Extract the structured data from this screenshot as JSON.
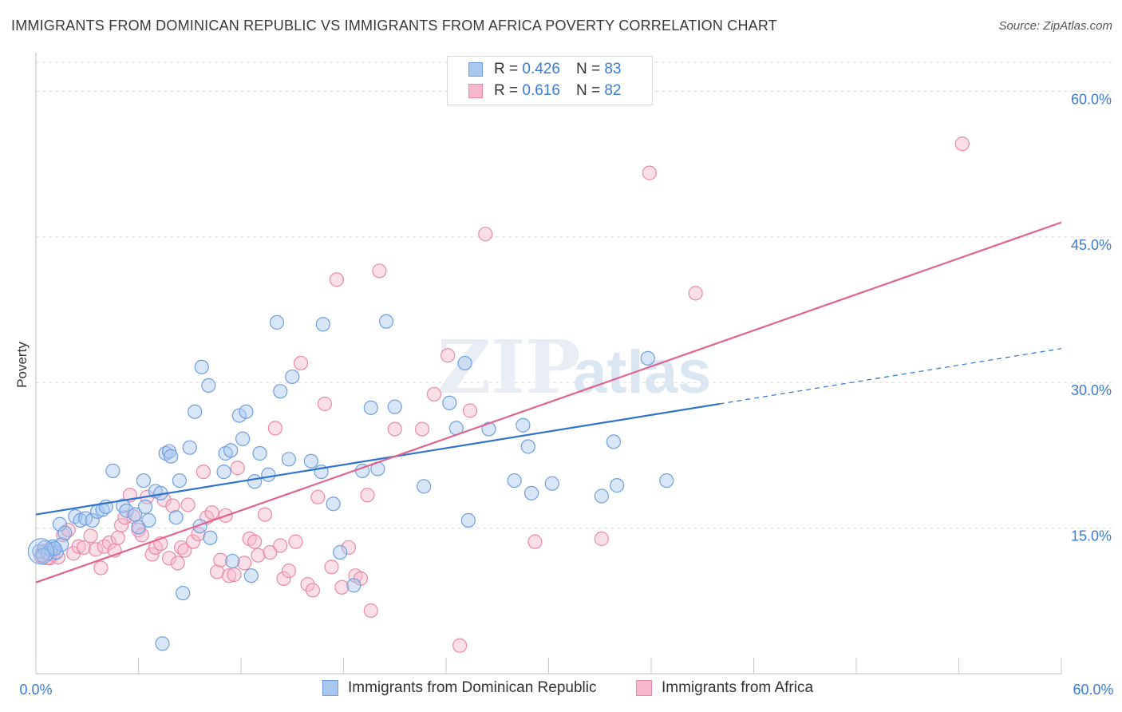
{
  "header": {
    "title": "IMMIGRANTS FROM DOMINICAN REPUBLIC VS IMMIGRANTS FROM AFRICA POVERTY CORRELATION CHART",
    "source": "Source: ZipAtlas.com"
  },
  "legend": {
    "rows": [
      {
        "r_label": "R = ",
        "r_value": "0.426",
        "n_label": "N = ",
        "n_value": "83"
      },
      {
        "r_label": "R = ",
        "r_value": "0.616",
        "n_label": "N = ",
        "n_value": "82"
      }
    ]
  },
  "bottom_legend": {
    "series1": "Immigrants from Dominican Republic",
    "series2": "Immigrants from Africa"
  },
  "watermark": "ZIPatlas",
  "colors": {
    "blue_fill": "#a9c8f0",
    "blue_stroke": "#6f9fe0",
    "blue_line": "#2f72d0",
    "pink_fill": "#f6b8ca",
    "pink_stroke": "#ea8aa8",
    "pink_line": "#e0648e",
    "grid": "#dcdcdc",
    "axis_text": "#3a7bd5"
  },
  "chart_data": {
    "type": "scatter",
    "title": "IMMIGRANTS FROM DOMINICAN REPUBLIC VS IMMIGRANTS FROM AFRICA POVERTY CORRELATION CHART",
    "xlabel": "",
    "ylabel": "Poverty",
    "xlim": [
      0,
      60
    ],
    "ylim": [
      0,
      63
    ],
    "x_tick_labels": [
      "0.0%",
      "60.0%"
    ],
    "y_tick_labels": [
      "15.0%",
      "30.0%",
      "45.0%",
      "60.0%"
    ],
    "y_ticks": [
      15,
      30,
      45,
      60
    ],
    "grid": "horizontal dashed",
    "legend_position": "top-center",
    "series": [
      {
        "name": "Immigrants from Dominican Republic",
        "color": "#6f9fe0",
        "R": 0.426,
        "N": 83,
        "trendline": {
          "x": [
            0,
            40
          ],
          "y": [
            16.4,
            27.8
          ],
          "dashed_extension_to": [
            60,
            33.5
          ]
        },
        "points": [
          [
            0.2,
            12.6
          ],
          [
            0.5,
            13.0
          ],
          [
            0.7,
            12.4
          ],
          [
            0.9,
            12.8
          ],
          [
            1.0,
            13.1
          ],
          [
            1.2,
            12.5
          ],
          [
            1.5,
            13.3
          ],
          [
            1.4,
            15.4
          ],
          [
            1.7,
            14.5
          ],
          [
            2.3,
            16.2
          ],
          [
            2.6,
            15.8
          ],
          [
            2.9,
            16.0
          ],
          [
            3.3,
            15.8
          ],
          [
            3.6,
            16.7
          ],
          [
            3.9,
            16.9
          ],
          [
            4.1,
            17.2
          ],
          [
            4.5,
            20.9
          ],
          [
            5.1,
            17.3
          ],
          [
            5.3,
            16.8
          ],
          [
            5.8,
            16.4
          ],
          [
            6.0,
            15.1
          ],
          [
            6.3,
            19.9
          ],
          [
            6.4,
            17.2
          ],
          [
            6.6,
            15.8
          ],
          [
            7.0,
            18.8
          ],
          [
            7.3,
            18.6
          ],
          [
            7.6,
            22.7
          ],
          [
            7.8,
            22.9
          ],
          [
            7.9,
            22.4
          ],
          [
            8.2,
            16.1
          ],
          [
            8.4,
            19.9
          ],
          [
            8.6,
            8.3
          ],
          [
            9.0,
            23.3
          ],
          [
            9.3,
            27.0
          ],
          [
            9.6,
            15.2
          ],
          [
            9.7,
            31.6
          ],
          [
            10.1,
            29.7
          ],
          [
            10.2,
            14.0
          ],
          [
            11.0,
            20.8
          ],
          [
            11.1,
            22.7
          ],
          [
            11.4,
            23.0
          ],
          [
            11.5,
            11.6
          ],
          [
            11.9,
            26.6
          ],
          [
            12.1,
            24.2
          ],
          [
            12.3,
            27.0
          ],
          [
            12.6,
            10.1
          ],
          [
            12.8,
            19.8
          ],
          [
            13.1,
            22.7
          ],
          [
            13.6,
            20.5
          ],
          [
            14.1,
            36.2
          ],
          [
            14.3,
            29.1
          ],
          [
            14.8,
            22.1
          ],
          [
            15.0,
            30.6
          ],
          [
            16.1,
            21.9
          ],
          [
            16.7,
            20.8
          ],
          [
            16.8,
            36.0
          ],
          [
            17.4,
            17.5
          ],
          [
            17.8,
            12.5
          ],
          [
            18.6,
            9.1
          ],
          [
            19.1,
            20.9
          ],
          [
            19.6,
            27.4
          ],
          [
            20.0,
            21.1
          ],
          [
            20.5,
            36.3
          ],
          [
            21.0,
            27.5
          ],
          [
            22.7,
            19.3
          ],
          [
            24.2,
            27.9
          ],
          [
            24.6,
            25.3
          ],
          [
            25.1,
            32.0
          ],
          [
            25.3,
            15.8
          ],
          [
            26.5,
            25.2
          ],
          [
            28.0,
            19.9
          ],
          [
            28.5,
            25.6
          ],
          [
            28.8,
            23.4
          ],
          [
            29.0,
            18.6
          ],
          [
            30.2,
            19.6
          ],
          [
            33.1,
            18.3
          ],
          [
            33.8,
            23.9
          ],
          [
            34.0,
            19.4
          ],
          [
            35.8,
            32.5
          ],
          [
            36.9,
            19.9
          ],
          [
            7.4,
            3.1
          ],
          [
            0.4,
            12.2
          ],
          [
            1.1,
            12.9
          ]
        ]
      },
      {
        "name": "Immigrants from Africa",
        "color": "#ea8aa8",
        "R": 0.616,
        "N": 82,
        "trendline": {
          "x": [
            0,
            60
          ],
          "y": [
            9.4,
            46.5
          ]
        },
        "points": [
          [
            0.3,
            12.1
          ],
          [
            0.6,
            12.6
          ],
          [
            0.8,
            11.9
          ],
          [
            1.0,
            12.3
          ],
          [
            1.3,
            12.0
          ],
          [
            1.6,
            14.3
          ],
          [
            1.9,
            14.8
          ],
          [
            2.2,
            12.4
          ],
          [
            2.5,
            13.1
          ],
          [
            2.8,
            13.0
          ],
          [
            3.2,
            14.2
          ],
          [
            3.5,
            12.8
          ],
          [
            3.8,
            10.9
          ],
          [
            4.0,
            13.1
          ],
          [
            4.3,
            13.5
          ],
          [
            4.6,
            12.7
          ],
          [
            4.8,
            14.0
          ],
          [
            5.0,
            15.3
          ],
          [
            5.2,
            16.1
          ],
          [
            5.5,
            18.4
          ],
          [
            5.7,
            16.2
          ],
          [
            6.0,
            14.8
          ],
          [
            6.2,
            14.3
          ],
          [
            6.5,
            18.2
          ],
          [
            6.8,
            12.3
          ],
          [
            7.0,
            13.0
          ],
          [
            7.3,
            13.4
          ],
          [
            7.5,
            17.9
          ],
          [
            7.8,
            11.9
          ],
          [
            8.0,
            17.3
          ],
          [
            8.3,
            11.4
          ],
          [
            8.5,
            13.0
          ],
          [
            8.7,
            12.7
          ],
          [
            8.9,
            17.4
          ],
          [
            9.2,
            13.6
          ],
          [
            9.5,
            14.4
          ],
          [
            9.8,
            20.8
          ],
          [
            10.0,
            16.1
          ],
          [
            10.3,
            16.6
          ],
          [
            10.6,
            10.5
          ],
          [
            10.8,
            11.7
          ],
          [
            11.1,
            16.3
          ],
          [
            11.3,
            10.1
          ],
          [
            11.6,
            10.2
          ],
          [
            11.8,
            21.2
          ],
          [
            12.2,
            11.4
          ],
          [
            12.5,
            13.9
          ],
          [
            12.8,
            13.6
          ],
          [
            13.0,
            12.2
          ],
          [
            13.4,
            16.4
          ],
          [
            13.7,
            12.5
          ],
          [
            14.0,
            25.3
          ],
          [
            14.3,
            13.2
          ],
          [
            14.5,
            9.8
          ],
          [
            14.8,
            10.6
          ],
          [
            15.2,
            13.6
          ],
          [
            15.5,
            32.0
          ],
          [
            15.9,
            9.2
          ],
          [
            16.2,
            8.6
          ],
          [
            16.5,
            18.2
          ],
          [
            16.9,
            27.8
          ],
          [
            17.3,
            11.0
          ],
          [
            17.6,
            40.6
          ],
          [
            17.9,
            8.9
          ],
          [
            18.3,
            13.0
          ],
          [
            18.7,
            10.1
          ],
          [
            19.0,
            9.8
          ],
          [
            19.4,
            18.4
          ],
          [
            19.6,
            6.5
          ],
          [
            20.1,
            41.5
          ],
          [
            21.0,
            25.2
          ],
          [
            22.6,
            25.2
          ],
          [
            23.3,
            28.8
          ],
          [
            24.1,
            32.8
          ],
          [
            24.8,
            2.9
          ],
          [
            25.4,
            27.1
          ],
          [
            26.3,
            45.3
          ],
          [
            29.2,
            13.6
          ],
          [
            33.1,
            13.9
          ],
          [
            35.9,
            51.6
          ],
          [
            38.6,
            39.2
          ],
          [
            54.2,
            54.6
          ]
        ]
      }
    ]
  }
}
